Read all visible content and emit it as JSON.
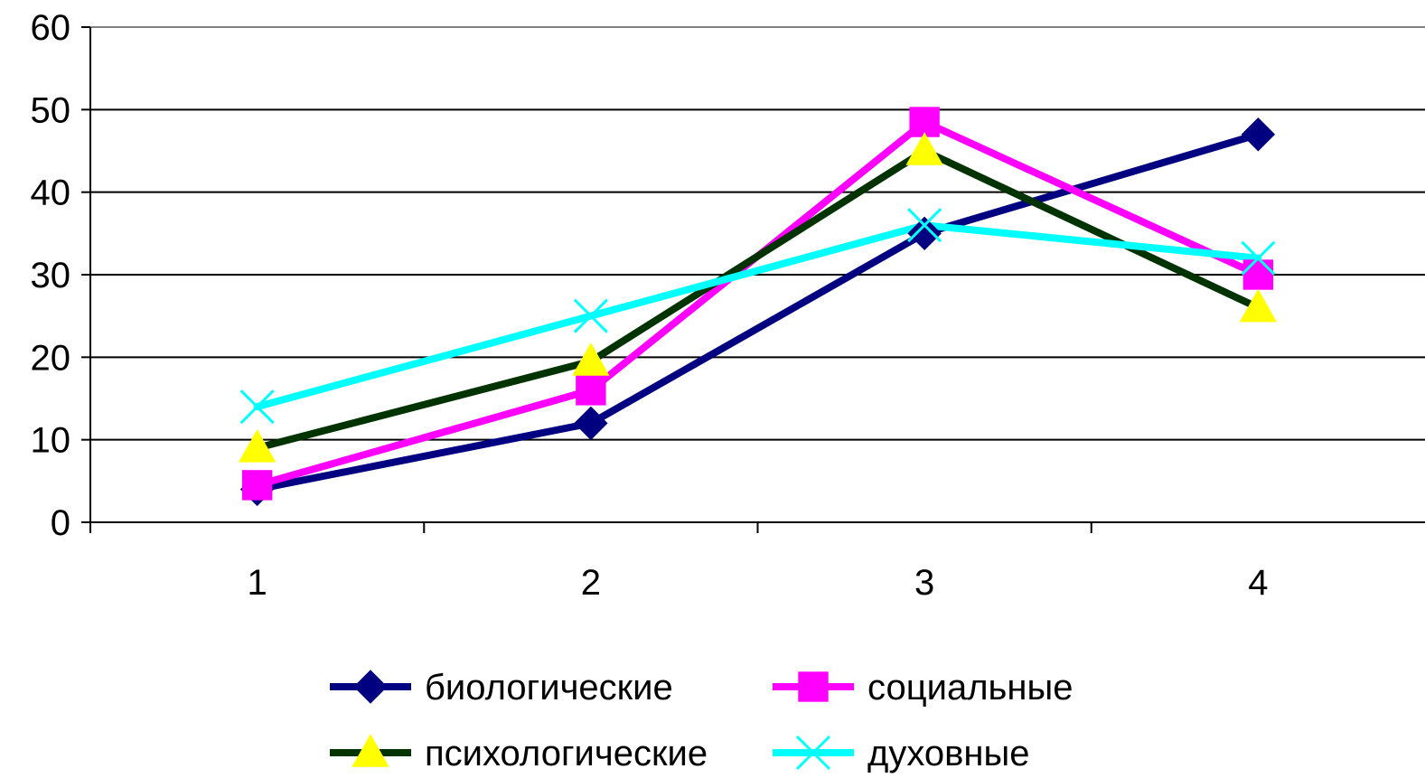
{
  "chart_data": {
    "type": "line",
    "title": "",
    "xlabel": "",
    "ylabel": "",
    "categories": [
      "1",
      "2",
      "3",
      "4"
    ],
    "ylim": [
      0,
      60
    ],
    "yticks": [
      "0",
      "10",
      "20",
      "30",
      "40",
      "50",
      "60"
    ],
    "grid": "horizontal",
    "legend_position": "bottom",
    "series": [
      {
        "name": "биологические",
        "values": [
          4,
          12,
          35,
          47
        ],
        "color": "#000080",
        "marker": "diamond"
      },
      {
        "name": "социальные",
        "values": [
          4.5,
          16,
          48.5,
          30
        ],
        "color": "#FF00FF",
        "marker": "square"
      },
      {
        "name": "психологические",
        "values": [
          9,
          19.5,
          45,
          26
        ],
        "color": "#003300",
        "marker": "triangle",
        "marker_color": "#FFFF00"
      },
      {
        "name": "духовные",
        "values": [
          14,
          25,
          36,
          32
        ],
        "color": "#00FFFF",
        "marker": "x"
      }
    ]
  }
}
